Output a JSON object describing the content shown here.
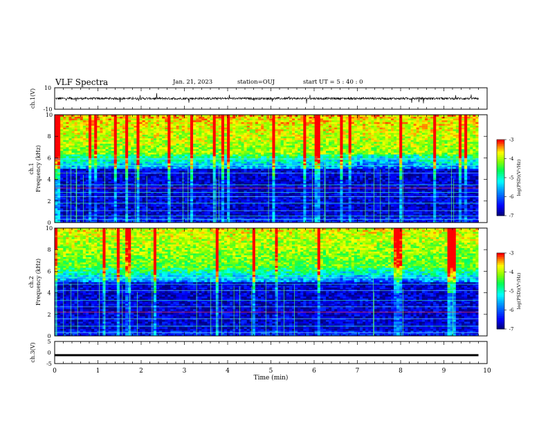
{
  "header": {
    "title": "VLF Spectra",
    "date": "Jan. 21, 2023",
    "station": "station=OUJ",
    "start": "start UT =  5 : 40 : 0"
  },
  "chart_data": {
    "type": "heatmap",
    "x": {
      "label": "Time (min)",
      "range": [
        0,
        10
      ],
      "ticks": [
        "0",
        "1",
        "2",
        "3",
        "4",
        "5",
        "6",
        "7",
        "8",
        "9",
        "10"
      ]
    },
    "panels": [
      {
        "name": "ch1-waveform",
        "type": "line",
        "ylabel": "ch.1(V)",
        "ylim": [
          -10,
          10
        ],
        "ticks": [
          "10",
          "-10"
        ],
        "level": 0,
        "noise_amplitude": 2
      },
      {
        "name": "ch1-spectrogram",
        "type": "heatmap",
        "ylabel": "ch.1\nFrequency (kHz)",
        "ylim": [
          0,
          10
        ],
        "ticks": [
          "0",
          "2",
          "4",
          "6",
          "8",
          "10"
        ]
      },
      {
        "name": "ch2-spectrogram",
        "type": "heatmap",
        "ylabel": "ch.2\nFrequency (kHz)",
        "ylim": [
          0,
          10
        ],
        "ticks": [
          "0",
          "2",
          "4",
          "6",
          "8",
          "10"
        ]
      },
      {
        "name": "ch3-waveform",
        "type": "line",
        "ylabel": "ch.3(V)",
        "ylim": [
          -5,
          5
        ],
        "ticks": [
          "5",
          "0",
          "-5"
        ],
        "level": -1.2
      }
    ],
    "colorbar": {
      "label": "log(PSD)(V²/Hz)",
      "range": [
        -7,
        -3
      ],
      "ticks": [
        "-3",
        "-4",
        "-5",
        "-6",
        "-7"
      ]
    },
    "data_end_min": 9.8,
    "colors": {
      "dark_blue": "#00007f",
      "blue": "#0000ff",
      "cyan": "#00ffff",
      "green": "#00ff00",
      "yellow": "#ffff00",
      "red": "#ff0000"
    }
  }
}
